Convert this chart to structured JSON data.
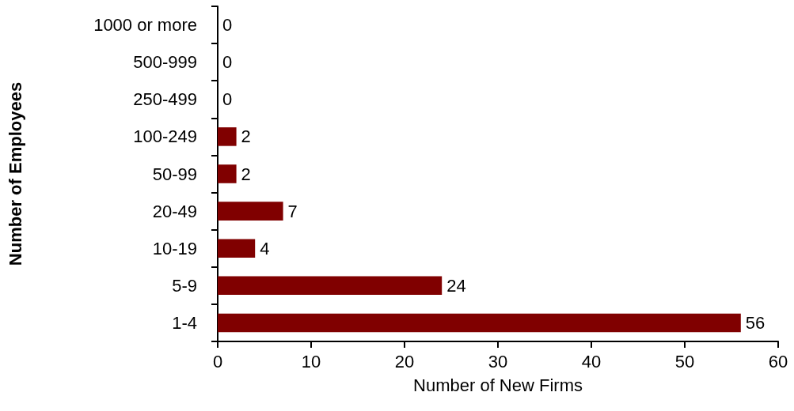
{
  "chart_data": {
    "type": "bar",
    "orientation": "horizontal",
    "categories": [
      "1000 or more",
      "500-999",
      "250-499",
      "100-249",
      "50-99",
      "20-49",
      "10-19",
      "5-9",
      "1-4"
    ],
    "values": [
      0,
      0,
      0,
      2,
      2,
      7,
      4,
      24,
      56
    ],
    "color": "#800000",
    "xlabel": "Number of New Firms",
    "ylabel": "Number of Employees",
    "xlim": [
      0,
      60
    ],
    "xticks": [
      0,
      10,
      20,
      30,
      40,
      50,
      60
    ],
    "data_labels": true,
    "grid": false
  }
}
